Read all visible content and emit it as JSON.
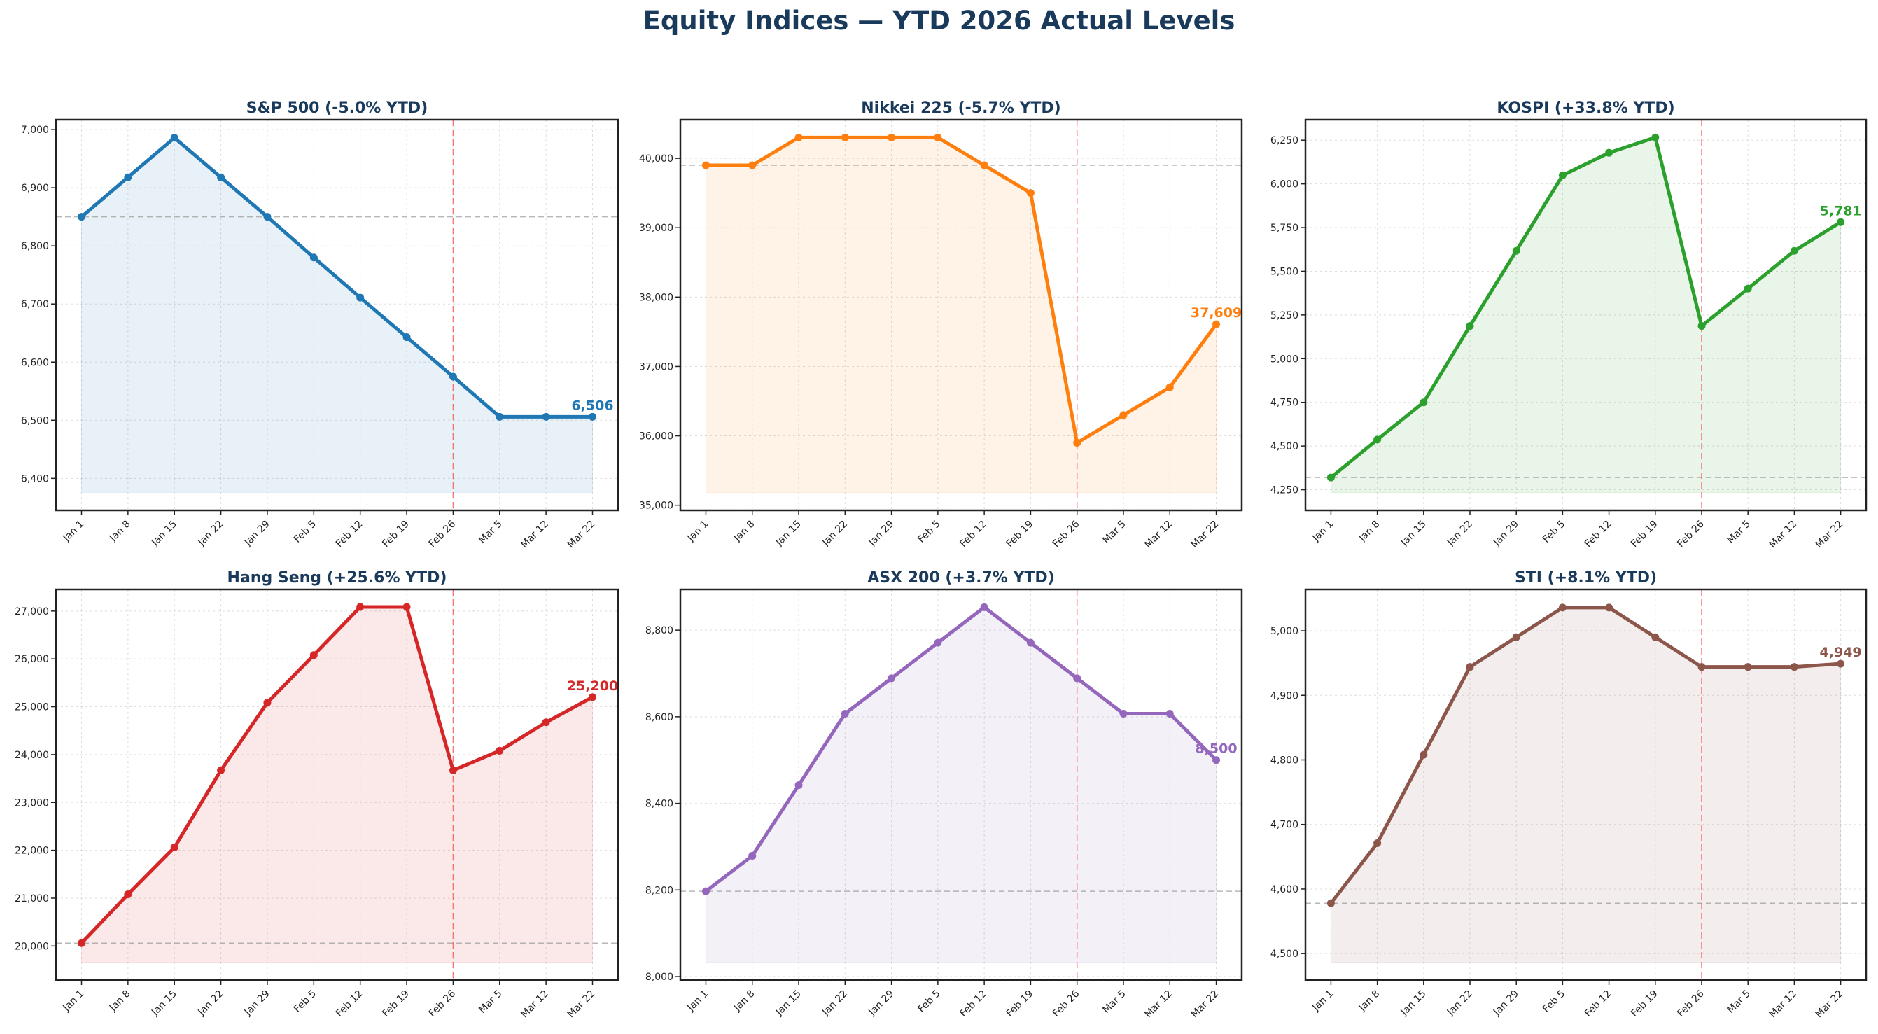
{
  "title": "Equity Indices — YTD 2026 Actual Levels",
  "chart_data": [
    {
      "type": "line",
      "title": "S&P 500  (-5.0% YTD)",
      "color": "#1f77b4",
      "categories": [
        "Jan 1",
        "Jan 8",
        "Jan 15",
        "Jan 22",
        "Jan 29",
        "Feb 5",
        "Feb 12",
        "Feb 19",
        "Feb 26",
        "Mar 5",
        "Mar 12",
        "Mar 22"
      ],
      "values": [
        6850,
        6918,
        6986,
        6918,
        6850,
        6780,
        6711,
        6643,
        6575,
        6506,
        6506,
        6506
      ],
      "last_label": "6,506",
      "ylim": [
        6345,
        7017
      ],
      "yticks": [
        6400,
        6500,
        6600,
        6700,
        6800,
        6900,
        7000
      ],
      "baseline": 6850,
      "marker_category": "Feb 26",
      "grid": true
    },
    {
      "type": "line",
      "title": "Nikkei 225  (-5.7% YTD)",
      "color": "#ff7f0e",
      "categories": [
        "Jan 1",
        "Jan 8",
        "Jan 15",
        "Jan 22",
        "Jan 29",
        "Feb 5",
        "Feb 12",
        "Feb 19",
        "Feb 26",
        "Mar 5",
        "Mar 12",
        "Mar 22"
      ],
      "values": [
        39900,
        39900,
        40300,
        40300,
        40300,
        40300,
        39900,
        39500,
        35900,
        36300,
        36700,
        37609
      ],
      "last_label": "37,609",
      "ylim": [
        34926,
        40556
      ],
      "yticks": [
        35000,
        36000,
        37000,
        38000,
        39000,
        40000
      ],
      "baseline": 39900,
      "marker_category": "Feb 26",
      "grid": true
    },
    {
      "type": "line",
      "title": "KOSPI  (+33.8% YTD)",
      "color": "#2ca02c",
      "categories": [
        "Jan 1",
        "Jan 8",
        "Jan 15",
        "Jan 22",
        "Jan 29",
        "Feb 5",
        "Feb 12",
        "Feb 19",
        "Feb 26",
        "Mar 5",
        "Mar 12",
        "Mar 22"
      ],
      "values": [
        4320,
        4537,
        4750,
        5187,
        5617,
        6049,
        6178,
        6266,
        5187,
        5401,
        5617,
        5781
      ],
      "last_label": "5,781",
      "ylim": [
        4132,
        6367
      ],
      "yticks": [
        4250,
        4500,
        4750,
        5000,
        5250,
        5500,
        5750,
        6000,
        6250
      ],
      "baseline": 4320,
      "marker_category": "Feb 26",
      "grid": true
    },
    {
      "type": "line",
      "title": "Hang Seng  (+25.6% YTD)",
      "color": "#d62728",
      "categories": [
        "Jan 1",
        "Jan 8",
        "Jan 15",
        "Jan 22",
        "Jan 29",
        "Feb 5",
        "Feb 12",
        "Feb 19",
        "Feb 26",
        "Mar 5",
        "Mar 12",
        "Mar 22"
      ],
      "values": [
        20060,
        21080,
        22060,
        23670,
        25085,
        26080,
        27085,
        27085,
        23670,
        24080,
        24675,
        25200
      ],
      "last_label": "25,200",
      "ylim": [
        19288,
        27451
      ],
      "yticks": [
        20000,
        21000,
        22000,
        23000,
        24000,
        25000,
        26000,
        27000
      ],
      "baseline": 20060,
      "marker_category": "Feb 26",
      "grid": true
    },
    {
      "type": "line",
      "title": "ASX 200  (+3.7% YTD)",
      "color": "#9467bd",
      "categories": [
        "Jan 1",
        "Jan 8",
        "Jan 15",
        "Jan 22",
        "Jan 29",
        "Feb 5",
        "Feb 12",
        "Feb 19",
        "Feb 26",
        "Mar 5",
        "Mar 12",
        "Mar 22"
      ],
      "values": [
        8197,
        8279,
        8442,
        8607,
        8689,
        8771,
        8853,
        8771,
        8689,
        8607,
        8607,
        8500
      ],
      "last_label": "8,500",
      "ylim": [
        7992,
        8894
      ],
      "yticks": [
        8000,
        8200,
        8400,
        8600,
        8800
      ],
      "baseline": 8197,
      "marker_category": "Feb 26",
      "grid": true
    },
    {
      "type": "line",
      "title": "STI  (+8.1% YTD)",
      "color": "#8c564b",
      "categories": [
        "Jan 1",
        "Jan 8",
        "Jan 15",
        "Jan 22",
        "Jan 29",
        "Feb 5",
        "Feb 12",
        "Feb 19",
        "Feb 26",
        "Mar 5",
        "Mar 12",
        "Mar 22"
      ],
      "values": [
        4578,
        4671,
        4808,
        4944,
        4990,
        5036,
        5036,
        4990,
        4944,
        4944,
        4944,
        4949
      ],
      "last_label": "4,949",
      "ylim": [
        4459,
        5064
      ],
      "yticks": [
        4500,
        4600,
        4700,
        4800,
        4900,
        5000
      ],
      "baseline": 4578,
      "marker_category": "Feb 26",
      "grid": true
    }
  ]
}
